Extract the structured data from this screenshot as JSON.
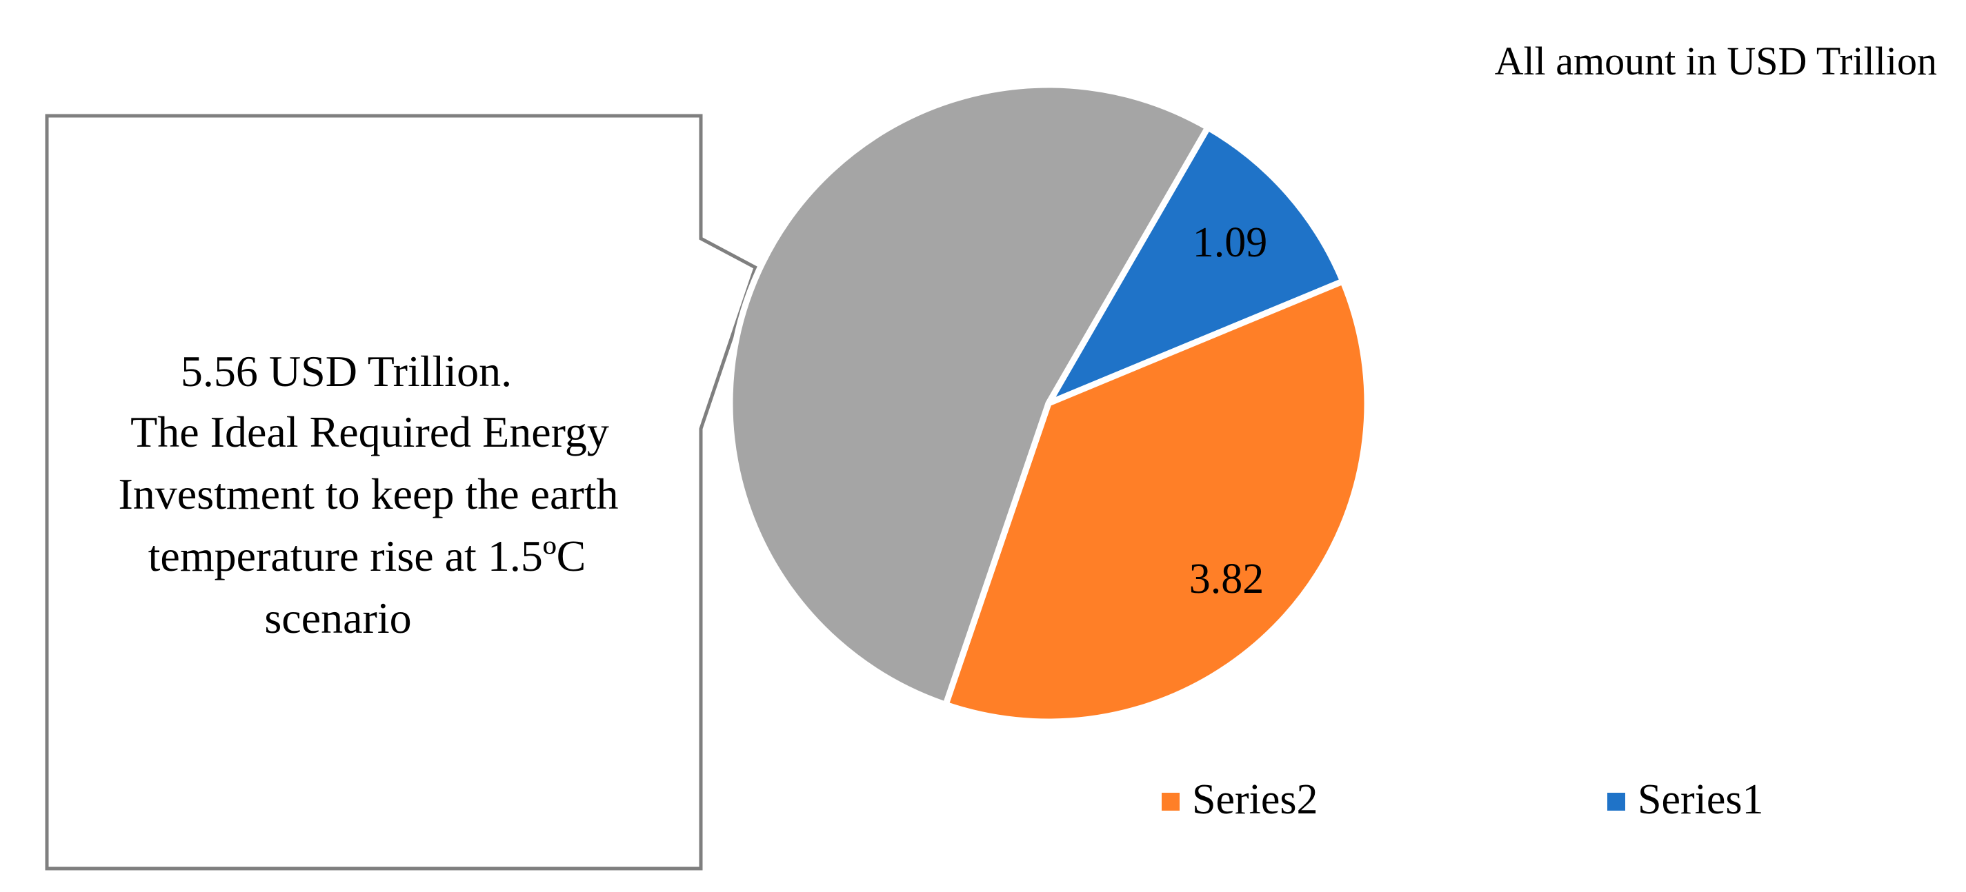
{
  "note_top_right": "All amount in USD Trillion",
  "colors": {
    "gray": "#A5A5A5",
    "blue": "#1F73C8",
    "orange": "#FF7F27",
    "callout_border": "#7F7F7F"
  },
  "callout": {
    "lines": [
      "5.56 USD Trillion.",
      "The Ideal Required Energy",
      "Investment to keep the earth",
      "temperature rise at 1.5ºC",
      "scenario"
    ]
  },
  "chart_data": {
    "type": "pie",
    "slices": [
      {
        "name": "Series1",
        "value": 1.09,
        "label": "1.09",
        "color": "#1F73C8"
      },
      {
        "name": "Series2",
        "value": 3.82,
        "label": "3.82",
        "color": "#FF7F27"
      },
      {
        "name": "",
        "value": 5.56,
        "label": "",
        "color": "#A5A5A5"
      }
    ],
    "legend": {
      "placement": "bottom-right",
      "entries": [
        {
          "label": "Series2",
          "color": "#FF7F27"
        },
        {
          "label": "Series1",
          "color": "#1F73C8"
        }
      ]
    }
  }
}
